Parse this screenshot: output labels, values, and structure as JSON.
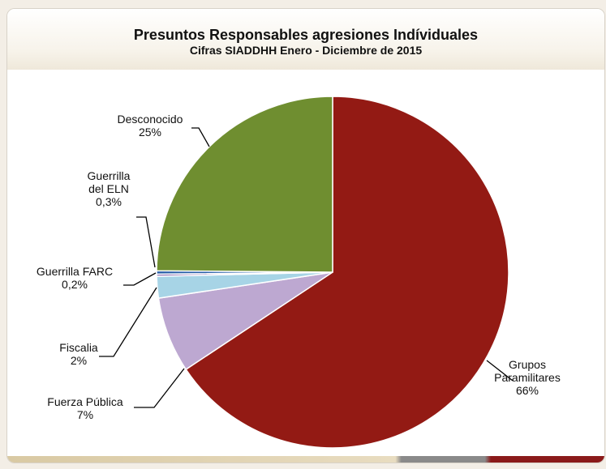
{
  "chart_data": {
    "type": "pie",
    "title": "Presuntos Responsables agresiones Indíviduales",
    "subtitle": "Cifras SIADDHH Enero - Diciembre de 2015",
    "slices": [
      {
        "label_lines": [
          "Grupos",
          "Paramilitares"
        ],
        "pct_label": "66%",
        "value": 66,
        "color": "#931a14"
      },
      {
        "label_lines": [
          "Fuerza Pública"
        ],
        "pct_label": "7%",
        "value": 7,
        "color": "#bda8d1"
      },
      {
        "label_lines": [
          "Fiscalia"
        ],
        "pct_label": "2%",
        "value": 2,
        "color": "#a7d4e6"
      },
      {
        "label_lines": [
          "Guerrilla FARC"
        ],
        "pct_label": "0,2%",
        "value": 0.2,
        "color": "#8a6bb0"
      },
      {
        "label_lines": [
          "Guerrilla",
          "del ELN"
        ],
        "pct_label": "0,3%",
        "value": 0.3,
        "color": "#2a5fa8"
      },
      {
        "label_lines": [
          "Desconocido"
        ],
        "pct_label": "25%",
        "value": 25,
        "color": "#6f8e30"
      }
    ]
  }
}
